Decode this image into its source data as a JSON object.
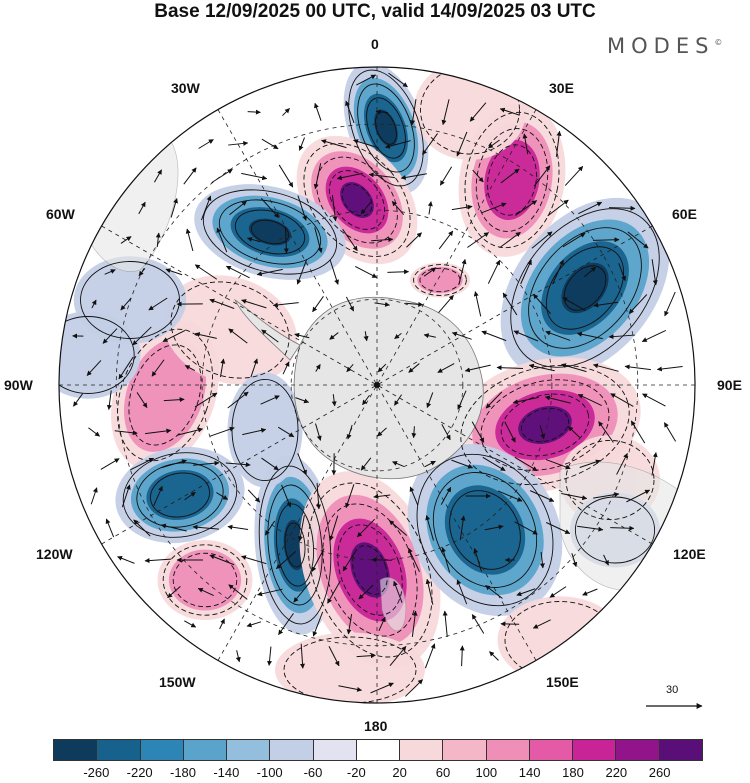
{
  "title": "Base 12/09/2025 00 UTC, valid 14/09/2025 03 UTC",
  "brand": "MODES",
  "brand_mark": "©",
  "longitude_labels": {
    "top": "0",
    "deg30e": "30E",
    "deg60e": "60E",
    "deg90e": "90E",
    "deg120e": "120E",
    "deg150e": "150E",
    "bottom": "180",
    "deg150w": "150W",
    "deg120w": "120W",
    "deg90w": "90W",
    "deg60w": "60W",
    "deg30w": "30W"
  },
  "reference_vector": {
    "value": "30"
  },
  "colorbar": {
    "colors": [
      "#0e3a5c",
      "#17618d",
      "#2d85b5",
      "#5aa3cb",
      "#93bedd",
      "#c3cfe6",
      "#e3e2f0",
      "#ffffff",
      "#f7d9db",
      "#f3b7c7",
      "#ef8fb8",
      "#e55aa6",
      "#c82497",
      "#92148a",
      "#5a0f78"
    ],
    "ticks": [
      "-260",
      "-220",
      "-180",
      "-140",
      "-100",
      "-60",
      "-20",
      "20",
      "60",
      "100",
      "140",
      "180",
      "220",
      "260"
    ]
  },
  "map_colors": {
    "land": "#e6e6e6",
    "pos_weak": "#f7d9db",
    "pos_mid": "#ef8fb8",
    "pos_strong": "#c82497",
    "pos_max": "#5a0f78",
    "neg_weak": "#c3cfe6",
    "neg_mid": "#5aa3cb",
    "neg_strong": "#17618d",
    "neg_max": "#0e3a5c"
  }
}
